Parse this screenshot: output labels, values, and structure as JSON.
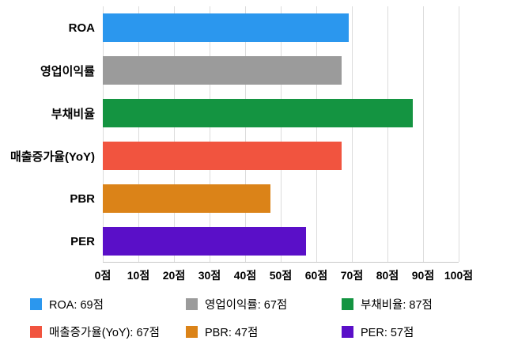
{
  "chart_data": {
    "type": "bar",
    "orientation": "horizontal",
    "title": "",
    "xlabel": "",
    "ylabel": "",
    "unit": "점",
    "categories": [
      "ROA",
      "영업이익률",
      "부채비율",
      "매출증가율(YoY)",
      "PBR",
      "PER"
    ],
    "values": [
      69,
      67,
      87,
      67,
      47,
      57
    ],
    "colors": [
      "#2B97EE",
      "#9B9B9B",
      "#149441",
      "#F1543F",
      "#DB8318",
      "#5A0FC8"
    ],
    "xlim": [
      0,
      100
    ],
    "xticks": [
      0,
      10,
      20,
      30,
      40,
      50,
      60,
      70,
      80,
      90,
      100
    ],
    "xtick_labels": [
      "0점",
      "10점",
      "20점",
      "30점",
      "40점",
      "50점",
      "60점",
      "70점",
      "80점",
      "90점",
      "100점"
    ],
    "grid": "vertical",
    "legend_position": "bottom",
    "legend": [
      {
        "label": "ROA: 69점",
        "color": "#2B97EE"
      },
      {
        "label": "영업이익률: 67점",
        "color": "#9B9B9B"
      },
      {
        "label": "부채비율: 87점",
        "color": "#149441"
      },
      {
        "label": "매출증가율(YoY): 67점",
        "color": "#F1543F"
      },
      {
        "label": "PBR: 47점",
        "color": "#DB8318"
      },
      {
        "label": "PER: 57점",
        "color": "#5A0FC8"
      }
    ]
  }
}
